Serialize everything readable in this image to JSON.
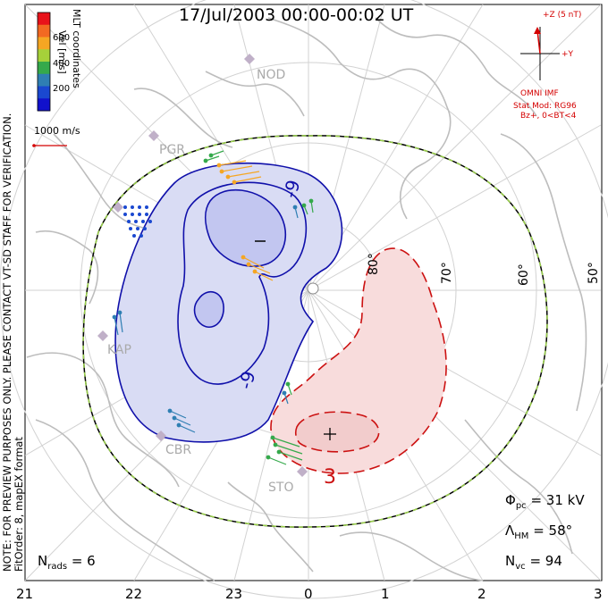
{
  "title": "17/Jul/2003 00:00-00:02 UT",
  "note_lines": [
    "NOTE: FOR PREVIEW PURPOSES ONLY. PLEASE CONTACT VT-SD STAFF FOR VERIFICATION.",
    "FitOrder: 8, mapEX format"
  ],
  "colorbar": {
    "label": "Vel [m/s]",
    "side_label": "MLT coordinates",
    "ticks": [
      "600",
      "400",
      "200"
    ],
    "colors": [
      "#e8121a",
      "#f26922",
      "#f5a623",
      "#a6d13a",
      "#35a94b",
      "#2f7fb3",
      "#1a48d0",
      "#1111cc"
    ]
  },
  "scale_vector": "1000 m/s",
  "imf": {
    "axis_z": "+Z (5 nT)",
    "axis_y": "+Y",
    "source": "OMNI IMF",
    "stat_mod": "Stat Mod: RG96",
    "condition": "Bz+, 0<BT<4"
  },
  "stations": [
    "NOD",
    "PGR",
    "KAP",
    "CBR",
    "STO"
  ],
  "latitudes": [
    "80°",
    "70°",
    "60°",
    "50°"
  ],
  "contours": {
    "negative_label": "-9",
    "negative_label_2": "-9",
    "positive_label": "3",
    "min_marker": "−",
    "max_marker": "+"
  },
  "stats": {
    "phi_label": "Φ",
    "phi_sub": "pc",
    "phi_value": "= 31 kV",
    "lambda_label": "Λ",
    "lambda_sub": "HM",
    "lambda_value": "= 58°",
    "nvc_label": "N",
    "nvc_sub": "vc",
    "nvc_value": "= 94",
    "nrads_label": "N",
    "nrads_sub": "rads",
    "nrads_value": "= 6"
  },
  "mlt_labels": [
    "21",
    "22",
    "23",
    "0",
    "1",
    "2",
    "3"
  ],
  "colors": {
    "negative": "#1010aa",
    "positive": "#cc1111",
    "negative_fill": "#d9dcf4",
    "positive_fill": "#f8dcdc",
    "coast": "#bfbfbf",
    "grid": "#cfcfcf"
  }
}
